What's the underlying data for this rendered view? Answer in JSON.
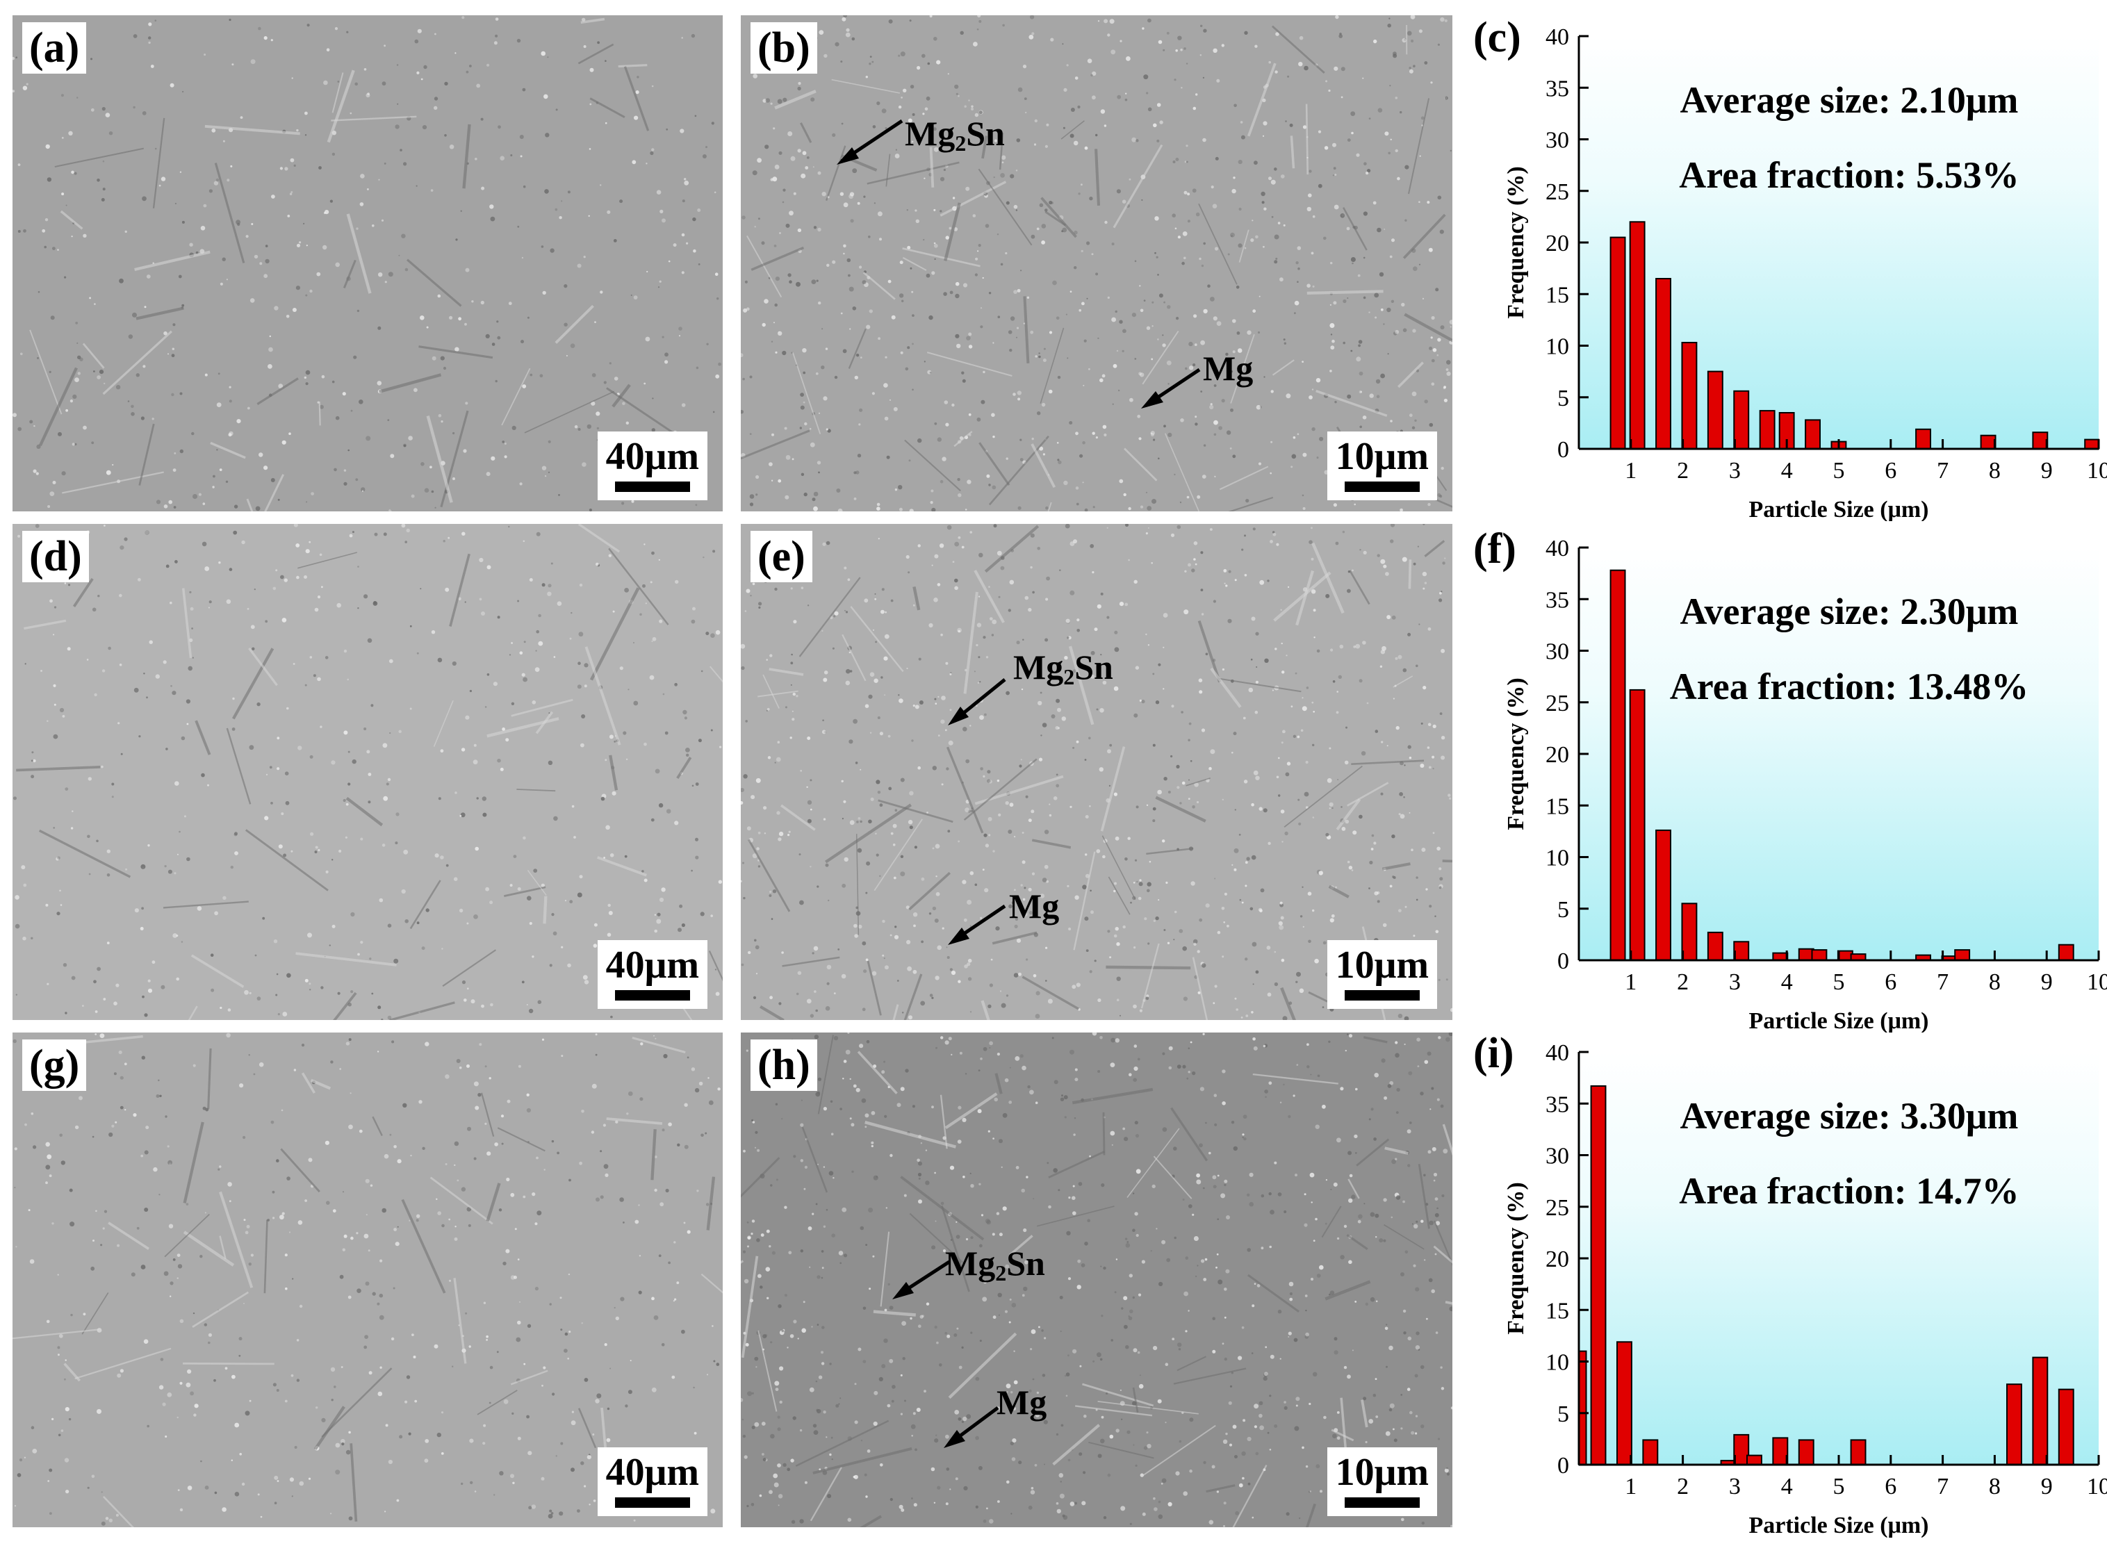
{
  "micrographs": [
    {
      "id": "a",
      "label": "(a)",
      "scale": "40μm",
      "tone": "#a3a3a3",
      "texture": "low"
    },
    {
      "id": "b",
      "label": "(b)",
      "scale": "10μm",
      "tone": "#a6a6a6",
      "texture": "high",
      "annotations": [
        {
          "text": "Mg",
          "sub": "2",
          "tail": "Sn"
        },
        {
          "text": "Mg"
        }
      ]
    },
    {
      "id": "d",
      "label": "(d)",
      "scale": "40μm",
      "tone": "#b4b4b4",
      "texture": "low"
    },
    {
      "id": "e",
      "label": "(e)",
      "scale": "10μm",
      "tone": "#afafaf",
      "texture": "high",
      "annotations": [
        {
          "text": "Mg",
          "sub": "2",
          "tail": "Sn"
        },
        {
          "text": "Mg"
        }
      ]
    },
    {
      "id": "g",
      "label": "(g)",
      "scale": "40μm",
      "tone": "#ababab",
      "texture": "low"
    },
    {
      "id": "h",
      "label": "(h)",
      "scale": "10μm",
      "tone": "#8f8f8f",
      "texture": "high",
      "annotations": [
        {
          "text": "Mg",
          "sub": "2",
          "tail": "Sn"
        },
        {
          "text": "Mg"
        }
      ]
    }
  ],
  "chart_data": [
    {
      "type": "bar",
      "panel_label": "(c)",
      "xlabel": "Particle Size (μm)",
      "ylabel": "Frequency (%)",
      "xlim": [
        0,
        10
      ],
      "ylim": [
        0,
        40
      ],
      "xticks": [
        1,
        2,
        3,
        4,
        5,
        6,
        7,
        8,
        9,
        10
      ],
      "yticks": [
        0,
        5,
        10,
        15,
        20,
        25,
        30,
        35,
        40
      ],
      "x": [
        0.75,
        1.125,
        1.625,
        2.125,
        2.625,
        3.125,
        3.625,
        4.0,
        4.5,
        5.0,
        6.625,
        7.875,
        8.875,
        9.875
      ],
      "values": [
        20.5,
        22,
        16.5,
        10.3,
        7.5,
        5.6,
        3.7,
        3.5,
        2.8,
        0.7,
        1.9,
        1.3,
        1.6,
        0.9
      ],
      "bar_color": "#e00000",
      "annotations": [
        "Average size: 2.10μm",
        "Area fraction: 5.53%"
      ]
    },
    {
      "type": "bar",
      "panel_label": "(f)",
      "xlabel": "Particle Size (μm)",
      "ylabel": "Frequency (%)",
      "xlim": [
        0,
        10
      ],
      "ylim": [
        0,
        40
      ],
      "xticks": [
        1,
        2,
        3,
        4,
        5,
        6,
        7,
        8,
        9,
        10
      ],
      "yticks": [
        0,
        5,
        10,
        15,
        20,
        25,
        30,
        35,
        40
      ],
      "x": [
        0.75,
        1.125,
        1.625,
        2.125,
        2.625,
        3.125,
        3.875,
        4.375,
        4.625,
        5.125,
        5.375,
        6.625,
        7.125,
        7.375,
        9.375
      ],
      "values": [
        37.8,
        26.2,
        12.6,
        5.5,
        2.7,
        1.8,
        0.7,
        1.1,
        1.0,
        0.9,
        0.6,
        0.5,
        0.4,
        1.0,
        1.5
      ],
      "bar_color": "#e00000",
      "annotations": [
        "Average size: 2.30μm",
        "Area fraction: 13.48%"
      ]
    },
    {
      "type": "bar",
      "panel_label": "(i)",
      "xlabel": "Particle Size (μm)",
      "ylabel": "Frequency (%)",
      "xlim": [
        0,
        10
      ],
      "ylim": [
        0,
        40
      ],
      "xticks": [
        1,
        2,
        3,
        4,
        5,
        6,
        7,
        8,
        9,
        10
      ],
      "yticks": [
        0,
        5,
        10,
        15,
        20,
        25,
        30,
        35,
        40
      ],
      "x": [
        0.0,
        0.375,
        0.875,
        1.375,
        2.875,
        3.125,
        3.375,
        3.875,
        4.375,
        4.875,
        5.375,
        8.375,
        8.875,
        9.375
      ],
      "values": [
        11,
        36.7,
        11.9,
        2.4,
        0.4,
        2.9,
        0.9,
        2.6,
        2.4,
        0,
        2.4,
        7.8,
        10.4,
        7.3
      ],
      "bar_color": "#e00000",
      "annotations": [
        "Average size: 3.30μm",
        "Area fraction: 14.7%"
      ]
    }
  ]
}
